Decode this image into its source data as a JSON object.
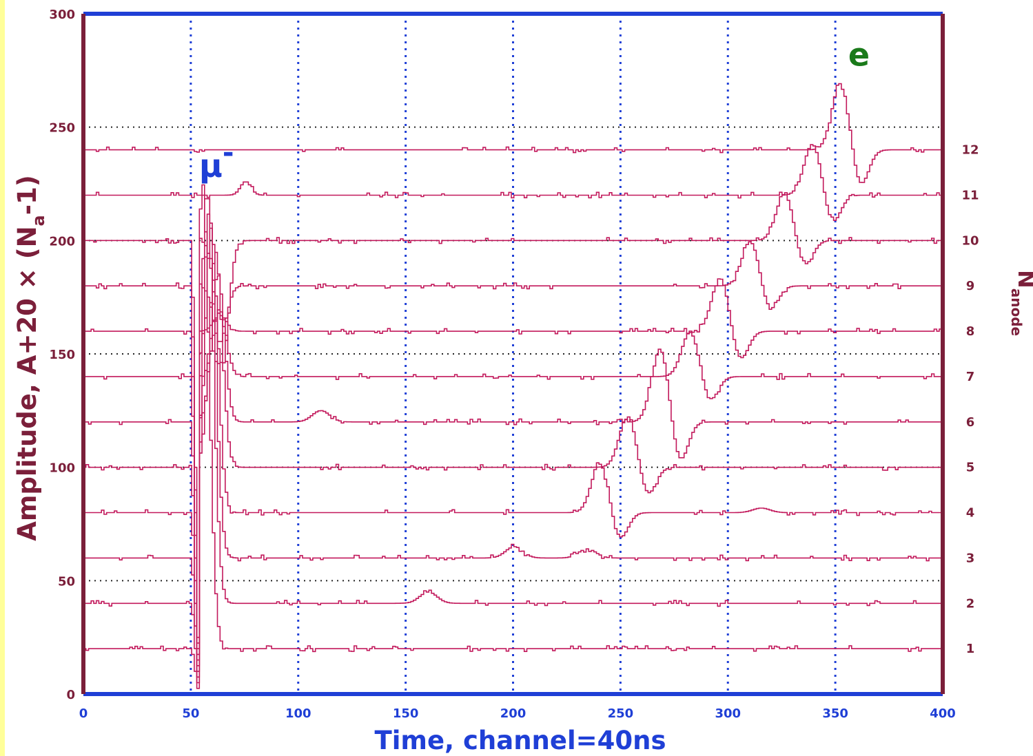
{
  "chart_data": {
    "type": "line",
    "title": "",
    "xlabel": "Time, channel=40ns",
    "ylabel": "Amplitude, A+20 × (N",
    "ylabel_sub": "a",
    "ylabel_tail": "-1)",
    "y2label": "N",
    "y2label_sub": "anode",
    "xlim": [
      0,
      400
    ],
    "ylim": [
      0,
      300
    ],
    "xticks": [
      0,
      50,
      100,
      150,
      200,
      250,
      300,
      350,
      400
    ],
    "yticks": [
      0,
      50,
      100,
      150,
      200,
      250,
      300
    ],
    "xtick_labels": [
      "0",
      "50",
      "100",
      "150",
      "200",
      "250",
      "300",
      "350",
      "400"
    ],
    "ytick_labels": [
      "0",
      "50",
      "100",
      "150",
      "200",
      "250",
      "300"
    ],
    "x_grid": "dotted blue vertical lines at 50-channel steps",
    "y_grid": "dotted black horizontal lines at 50-unit steps",
    "right_tick_labels": [
      "1",
      "2",
      "3",
      "4",
      "5",
      "6",
      "7",
      "8",
      "9",
      "10",
      "11",
      "12"
    ],
    "annotations": [
      {
        "text": "μ",
        "superscript": "-",
        "x": 62,
        "y": 228,
        "color": "#1f3fd6"
      },
      {
        "text": "e",
        "x": 361,
        "y": 277,
        "color": "#1a7a1a"
      }
    ],
    "series": [
      {
        "anode": 1,
        "baseline": 20,
        "muon_peak": {
          "x": 55,
          "y": 225
        },
        "muon_dip_y": 0,
        "secondary_peaks": []
      },
      {
        "anode": 2,
        "baseline": 40,
        "muon_peak": {
          "x": 57,
          "y": 222
        },
        "muon_dip_y": 0,
        "secondary_peaks": [
          {
            "x": 160,
            "y": 45
          }
        ]
      },
      {
        "anode": 3,
        "baseline": 60,
        "muon_peak": {
          "x": 58,
          "y": 213
        },
        "secondary_peaks": [
          {
            "x": 200,
            "y": 65
          },
          {
            "x": 234,
            "y": 64
          }
        ]
      },
      {
        "anode": 4,
        "baseline": 80,
        "muon_peak": {
          "x": 59,
          "y": 205
        },
        "secondary_peaks": [
          {
            "x": 240,
            "y": 102
          },
          {
            "x": 315,
            "y": 82
          }
        ]
      },
      {
        "anode": 5,
        "baseline": 100,
        "muon_peak": {
          "x": 61,
          "y": 195
        },
        "secondary_peaks": [
          {
            "x": 253,
            "y": 123
          }
        ]
      },
      {
        "anode": 6,
        "baseline": 120,
        "muon_peak": {
          "x": 62,
          "y": 185
        },
        "secondary_peaks": [
          {
            "x": 110,
            "y": 125
          },
          {
            "x": 268,
            "y": 153
          }
        ]
      },
      {
        "anode": 7,
        "baseline": 140,
        "muon_peak": {
          "x": 63,
          "y": 170
        },
        "secondary_peaks": [
          {
            "x": 282,
            "y": 160
          }
        ]
      },
      {
        "anode": 8,
        "baseline": 160,
        "muon_peak": {
          "x": 63,
          "y": 167
        },
        "secondary_peaks": [
          {
            "x": 296,
            "y": 184
          }
        ]
      },
      {
        "anode": 9,
        "baseline": 180,
        "muon_peak": {
          "x": 63,
          "y": 155
        },
        "secondary_peaks": [
          {
            "x": 310,
            "y": 200
          }
        ]
      },
      {
        "anode": 10,
        "baseline": 200,
        "muon_peak": {
          "x": 64,
          "y": 145
        },
        "secondary_peaks": [
          {
            "x": 326,
            "y": 221
          }
        ]
      },
      {
        "anode": 11,
        "baseline": 220,
        "muon_peak": {
          "x": 75,
          "y": 226
        },
        "secondary_peaks": [
          {
            "x": 339,
            "y": 243
          }
        ]
      },
      {
        "anode": 12,
        "baseline": 240,
        "muon_peak": null,
        "secondary_peaks": [
          {
            "x": 352,
            "y": 270
          },
          {
            "x": 410,
            "y": 241
          }
        ]
      }
    ],
    "colors": {
      "trace": "#c2185b",
      "axes_frame_top_bottom": "#1f3fd6",
      "axes_frame_left_right": "#7b1f3a",
      "x_tick_labels": "#1f3fd6",
      "y_tick_labels": "#7b1f3a",
      "x_grid": "#1f3fd6",
      "y_grid": "#222222",
      "xlabel": "#1f3fd6",
      "ylabel": "#7b1f3a"
    }
  }
}
